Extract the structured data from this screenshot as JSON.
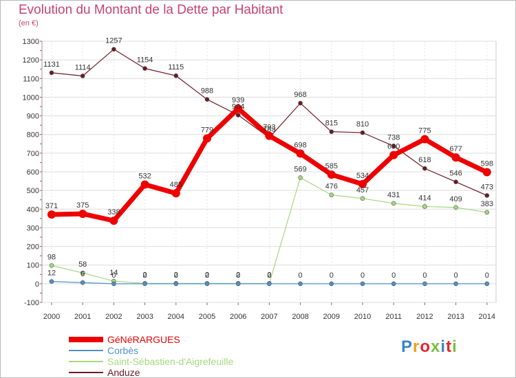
{
  "header": {
    "title": "Evolution du Montant de la Dette par Habitant",
    "subtitle": "(en €)"
  },
  "logo": {
    "text": "Proxiti"
  },
  "chart_data": {
    "type": "line",
    "categories": [
      "2000",
      "2001",
      "2002",
      "2003",
      "2004",
      "2005",
      "2006",
      "2007",
      "2008",
      "2009",
      "2010",
      "2011",
      "2012",
      "2013",
      "2014"
    ],
    "ylim": [
      -100,
      1300
    ],
    "yticks": [
      -100,
      0,
      100,
      200,
      300,
      400,
      500,
      600,
      700,
      800,
      900,
      1000,
      1100,
      1200,
      1300
    ],
    "grid": true,
    "legend": "bottom-left",
    "series": [
      {
        "name": "Anduze",
        "color": "#6b1a24",
        "values": [
          1131,
          1114,
          1257,
          1154,
          1115,
          988,
          904,
          783,
          968,
          815,
          810,
          738,
          618,
          546,
          473
        ]
      },
      {
        "name": "Saint-Sébastien-d'Aigrefeuille",
        "color": "#a5d97d",
        "values": [
          98,
          58,
          14,
          2,
          2,
          2,
          2,
          2,
          569,
          476,
          457,
          431,
          414,
          409,
          383
        ]
      },
      {
        "name": "Corbès",
        "color": "#4f8fc9",
        "values": [
          12,
          6,
          0,
          0,
          0,
          0,
          0,
          0,
          0,
          0,
          0,
          0,
          0,
          0,
          0
        ]
      },
      {
        "name": "GéNéRARGUES",
        "color": "#ee0000",
        "values": [
          371,
          375,
          338,
          532,
          485,
          779,
          939,
          793,
          698,
          585,
          534,
          690,
          775,
          677,
          598
        ]
      }
    ],
    "legend_order": [
      "GéNéRARGUES",
      "Corbès",
      "Saint-Sébastien-d'Aigrefeuille",
      "Anduze"
    ]
  }
}
